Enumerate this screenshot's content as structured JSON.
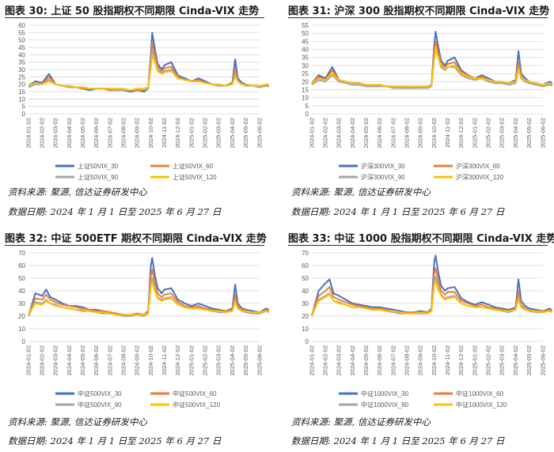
{
  "colors": {
    "s30": "#4472C4",
    "s60": "#ED7D31",
    "s90": "#A5A5A5",
    "s120": "#FFC000",
    "grid": "#d9d9d9",
    "text": "#595959"
  },
  "panels": [
    {
      "title": "图表 30:  上证 50 股指期权不同期限 Cinda-VIX 走势",
      "source": "资料来源:  聚源,  信达证券研发中心",
      "date": "数据日期:  2024 年 1 月 1 日至 2025 年 6 月 27 日"
    },
    {
      "title": "图表 31:  沪深 300 股指期权不同期限 Cinda-VIX 走势",
      "source": "资料来源:  聚源,  信达证券研发中心",
      "date": "数据日期:  2024 年 1 月 1 日至 2025 年 6 月 27 日"
    },
    {
      "title": "图表 32:  中证 500ETF 期权不同期限 Cinda-VIX 走势",
      "source": "资料来源:  聚源,  信达证券研发中心",
      "date": "数据日期:  2024 年 1 月 1 日至 2025 年 6 月 27 日"
    },
    {
      "title": "图表 33:  中证 1000 股指期权不同期限 Cinda-VIX 走势",
      "source": "资料来源:  聚源,  信达证券研发中心",
      "date": "数据日期:  2024 年 1 月 1 日至 2025 年 6 月 27 日"
    }
  ],
  "chart_data": [
    {
      "type": "line",
      "title": "上证 50 股指期权不同期限 Cinda-VIX 走势",
      "ylim": [
        0,
        60
      ],
      "yticks": [
        0,
        5,
        10,
        15,
        20,
        25,
        30,
        35,
        40,
        45,
        50,
        55,
        60
      ],
      "xticks": [
        "2024-01-02",
        "2024-02-02",
        "2024-03-02",
        "2024-04-02",
        "2024-05-02",
        "2024-06-02",
        "2024-07-02",
        "2024-08-02",
        "2024-09-02",
        "2024-10-02",
        "2024-11-02",
        "2024-12-02",
        "2025-01-02",
        "2025-02-02",
        "2025-03-02",
        "2025-04-02",
        "2025-05-02",
        "2025-06-02"
      ],
      "x": [
        0,
        0.5,
        1,
        1.5,
        2,
        2.5,
        3,
        3.5,
        4,
        4.5,
        5,
        5.5,
        6,
        6.5,
        7,
        7.5,
        8,
        8.5,
        8.8,
        9.0,
        9.1,
        9.3,
        9.5,
        9.8,
        10,
        10.5,
        11,
        11.5,
        12,
        12.5,
        13,
        13.5,
        14,
        14.5,
        15,
        15.2,
        15.4,
        15.7,
        16,
        16.5,
        17,
        17.5,
        17.9
      ],
      "series": [
        {
          "name": "上证50VIX_30",
          "values": [
            19,
            22,
            21,
            27,
            20,
            19,
            18,
            18,
            17,
            16,
            17,
            17,
            16,
            16,
            16,
            15,
            16,
            15,
            17,
            40,
            55,
            44,
            34,
            30,
            33,
            35,
            26,
            24,
            22,
            24,
            22,
            20,
            19,
            19,
            21,
            37,
            24,
            21,
            20,
            19,
            18,
            20,
            19
          ]
        },
        {
          "name": "上证50VIX_60",
          "values": [
            19,
            21,
            20,
            25,
            20,
            19,
            18,
            18,
            17,
            17,
            17,
            17,
            16,
            16,
            16,
            16,
            16,
            16,
            17,
            36,
            48,
            40,
            32,
            29,
            31,
            32,
            25,
            23,
            22,
            23,
            21,
            20,
            19,
            19,
            20,
            31,
            22,
            20,
            20,
            19,
            18,
            19,
            19
          ]
        },
        {
          "name": "上证50VIX_90",
          "values": [
            18,
            20,
            20,
            23,
            20,
            19,
            18,
            18,
            18,
            17,
            17,
            17,
            17,
            16,
            16,
            16,
            17,
            16,
            17,
            33,
            43,
            37,
            30,
            28,
            29,
            30,
            24,
            23,
            22,
            22,
            21,
            20,
            19,
            19,
            20,
            27,
            22,
            20,
            19,
            19,
            18,
            19,
            18
          ]
        },
        {
          "name": "上证50VIX_120",
          "values": [
            19,
            21,
            20,
            22,
            20,
            19,
            19,
            18,
            18,
            17,
            17,
            17,
            17,
            17,
            17,
            16,
            17,
            17,
            18,
            31,
            40,
            35,
            29,
            27,
            28,
            29,
            24,
            23,
            22,
            22,
            21,
            20,
            20,
            19,
            20,
            25,
            22,
            20,
            20,
            19,
            19,
            20,
            19
          ]
        }
      ],
      "legend": "bottom"
    },
    {
      "type": "line",
      "title": "沪深 300 股指期权不同期限 Cinda-VIX 走势",
      "ylim": [
        0,
        55
      ],
      "yticks": [
        0,
        5,
        10,
        15,
        20,
        25,
        30,
        35,
        40,
        45,
        50,
        55
      ],
      "xticks": [
        "2024-01-02",
        "2024-02-02",
        "2024-03-02",
        "2024-04-02",
        "2024-05-02",
        "2024-06-02",
        "2024-07-02",
        "2024-08-02",
        "2024-09-02",
        "2024-10-02",
        "2024-11-02",
        "2024-12-02",
        "2025-01-02",
        "2025-02-02",
        "2025-03-02",
        "2025-04-02",
        "2025-05-02",
        "2025-06-02"
      ],
      "x": [
        0,
        0.5,
        1,
        1.5,
        2,
        2.5,
        3,
        3.5,
        4,
        4.5,
        5,
        5.5,
        6,
        6.5,
        7,
        7.5,
        8,
        8.5,
        8.8,
        9.0,
        9.1,
        9.3,
        9.5,
        9.8,
        10,
        10.5,
        11,
        11.5,
        12,
        12.5,
        13,
        13.5,
        14,
        14.5,
        15,
        15.2,
        15.4,
        15.7,
        16,
        16.5,
        17,
        17.5,
        17.9
      ],
      "series": [
        {
          "name": "沪深300VIX_30",
          "values": [
            19,
            24,
            22,
            29,
            21,
            20,
            19,
            19,
            18,
            17,
            18,
            17,
            17,
            16,
            16,
            16,
            17,
            16,
            18,
            42,
            51,
            42,
            33,
            30,
            33,
            35,
            27,
            24,
            22,
            24,
            22,
            20,
            19,
            19,
            21,
            39,
            25,
            22,
            20,
            19,
            18,
            20,
            18
          ]
        },
        {
          "name": "沪深300VIX_60",
          "values": [
            19,
            23,
            21,
            27,
            21,
            20,
            19,
            19,
            18,
            17,
            18,
            17,
            17,
            17,
            17,
            16,
            17,
            17,
            18,
            38,
            45,
            38,
            31,
            29,
            31,
            32,
            26,
            24,
            22,
            23,
            21,
            20,
            19,
            19,
            20,
            32,
            23,
            21,
            20,
            19,
            18,
            19,
            18
          ]
        },
        {
          "name": "沪深300VIX_90",
          "values": [
            18,
            21,
            20,
            24,
            20,
            19,
            18,
            18,
            17,
            17,
            17,
            17,
            16,
            16,
            16,
            16,
            16,
            16,
            17,
            34,
            40,
            35,
            29,
            27,
            29,
            29,
            24,
            22,
            21,
            22,
            20,
            19,
            19,
            18,
            19,
            28,
            22,
            20,
            19,
            18,
            17,
            18,
            17
          ]
        },
        {
          "name": "沪深300VIX_120",
          "values": [
            19,
            22,
            21,
            25,
            21,
            20,
            19,
            19,
            18,
            18,
            18,
            17,
            17,
            17,
            17,
            17,
            17,
            17,
            18,
            33,
            40,
            35,
            30,
            28,
            29,
            30,
            25,
            23,
            22,
            22,
            21,
            20,
            20,
            19,
            20,
            28,
            22,
            21,
            20,
            19,
            18,
            19,
            18
          ]
        }
      ],
      "legend": "bottom"
    },
    {
      "type": "line",
      "title": "中证 500ETF 期权不同期限 Cinda-VIX 走势",
      "ylim": [
        0,
        70
      ],
      "yticks": [
        0,
        10,
        20,
        30,
        40,
        50,
        60,
        70
      ],
      "xticks": [
        "2024-01-02",
        "2024-02-02",
        "2024-03-02",
        "2024-04-02",
        "2024-05-02",
        "2024-06-02",
        "2024-07-02",
        "2024-08-02",
        "2024-09-02",
        "2024-10-02",
        "2024-11-02",
        "2024-12-02",
        "2025-01-02",
        "2025-02-02",
        "2025-03-02",
        "2025-04-02",
        "2025-05-02",
        "2025-06-02"
      ],
      "x": [
        0,
        0.5,
        1,
        1.3,
        1.6,
        2,
        2.5,
        3,
        3.5,
        4,
        4.5,
        5,
        5.5,
        6,
        6.5,
        7,
        7.5,
        8,
        8.5,
        8.8,
        9.0,
        9.1,
        9.3,
        9.5,
        9.8,
        10,
        10.5,
        11,
        11.5,
        12,
        12.5,
        13,
        13.5,
        14,
        14.5,
        15,
        15.2,
        15.4,
        15.7,
        16,
        16.5,
        17,
        17.5,
        17.9
      ],
      "series": [
        {
          "name": "中证500VIX_30",
          "values": [
            20,
            38,
            36,
            41,
            35,
            33,
            30,
            28,
            28,
            27,
            25,
            25,
            24,
            23,
            22,
            21,
            21,
            22,
            21,
            24,
            60,
            66,
            52,
            42,
            38,
            41,
            42,
            33,
            30,
            28,
            30,
            28,
            26,
            25,
            24,
            26,
            45,
            30,
            26,
            25,
            24,
            23,
            26,
            23
          ]
        },
        {
          "name": "中证500VIX_60",
          "values": [
            21,
            34,
            33,
            37,
            33,
            31,
            29,
            28,
            27,
            26,
            25,
            24,
            24,
            23,
            22,
            21,
            21,
            22,
            21,
            23,
            52,
            57,
            46,
            38,
            35,
            37,
            38,
            31,
            28,
            27,
            28,
            26,
            25,
            24,
            24,
            25,
            37,
            28,
            25,
            24,
            23,
            23,
            25,
            23
          ]
        },
        {
          "name": "中证500VIX_90",
          "values": [
            20,
            31,
            30,
            33,
            30,
            29,
            27,
            26,
            25,
            24,
            24,
            23,
            22,
            22,
            21,
            20,
            20,
            21,
            20,
            22,
            46,
            50,
            42,
            35,
            33,
            34,
            35,
            29,
            27,
            26,
            27,
            25,
            24,
            23,
            23,
            24,
            33,
            26,
            24,
            23,
            22,
            22,
            24,
            22
          ]
        },
        {
          "name": "中证500VIX_120",
          "values": [
            21,
            30,
            29,
            32,
            30,
            28,
            27,
            26,
            25,
            25,
            24,
            23,
            23,
            22,
            21,
            21,
            21,
            21,
            21,
            22,
            43,
            47,
            40,
            34,
            32,
            33,
            34,
            29,
            27,
            26,
            26,
            25,
            24,
            24,
            23,
            24,
            31,
            26,
            24,
            24,
            23,
            23,
            24,
            23
          ]
        }
      ],
      "legend": "bottom"
    },
    {
      "type": "line",
      "title": "中证 1000 股指期权不同期限 Cinda-VIX 走势",
      "ylim": [
        0,
        70
      ],
      "yticks": [
        0,
        10,
        20,
        30,
        40,
        50,
        60,
        70
      ],
      "xticks": [
        "2024-01-02",
        "2024-02-02",
        "2024-03-02",
        "2024-04-02",
        "2024-05-02",
        "2024-06-02",
        "2024-07-02",
        "2024-08-02",
        "2024-09-02",
        "2024-10-02",
        "2024-11-02",
        "2024-12-02",
        "2025-01-02",
        "2025-02-02",
        "2025-03-02",
        "2025-04-02",
        "2025-05-02",
        "2025-06-02"
      ],
      "x": [
        0,
        0.5,
        1,
        1.3,
        1.6,
        2,
        2.5,
        3,
        3.5,
        4,
        4.5,
        5,
        5.5,
        6,
        6.5,
        7,
        7.5,
        8,
        8.5,
        8.8,
        9.0,
        9.1,
        9.3,
        9.5,
        9.8,
        10,
        10.5,
        11,
        11.5,
        12,
        12.5,
        13,
        13.5,
        14,
        14.5,
        15,
        15.2,
        15.4,
        15.7,
        16,
        16.5,
        17,
        17.5,
        17.9
      ],
      "series": [
        {
          "name": "中证1000VIX_30",
          "values": [
            20,
            40,
            46,
            49,
            38,
            36,
            33,
            30,
            29,
            28,
            27,
            27,
            26,
            25,
            24,
            23,
            23,
            24,
            23,
            26,
            62,
            68,
            55,
            44,
            40,
            42,
            43,
            34,
            31,
            29,
            31,
            29,
            27,
            26,
            25,
            27,
            49,
            32,
            28,
            26,
            25,
            24,
            26,
            22
          ]
        },
        {
          "name": "中证1000VIX_60",
          "values": [
            21,
            36,
            40,
            43,
            35,
            33,
            31,
            29,
            28,
            27,
            26,
            26,
            25,
            24,
            23,
            23,
            23,
            23,
            23,
            25,
            53,
            58,
            48,
            40,
            37,
            39,
            39,
            32,
            30,
            28,
            29,
            27,
            26,
            25,
            24,
            26,
            40,
            29,
            26,
            25,
            24,
            24,
            25,
            23
          ]
        },
        {
          "name": "中证1000VIX_90",
          "values": [
            20,
            33,
            36,
            38,
            32,
            31,
            29,
            27,
            27,
            26,
            25,
            25,
            24,
            23,
            22,
            22,
            22,
            22,
            22,
            24,
            47,
            51,
            43,
            37,
            34,
            35,
            36,
            30,
            28,
            27,
            27,
            26,
            25,
            24,
            23,
            25,
            35,
            27,
            25,
            24,
            23,
            23,
            24,
            22
          ]
        },
        {
          "name": "中证1000VIX_120",
          "values": [
            21,
            32,
            35,
            37,
            32,
            30,
            29,
            27,
            27,
            26,
            25,
            25,
            24,
            24,
            23,
            22,
            22,
            23,
            22,
            24,
            44,
            48,
            41,
            36,
            33,
            34,
            35,
            30,
            28,
            27,
            27,
            26,
            25,
            24,
            24,
            25,
            33,
            27,
            25,
            24,
            24,
            23,
            24,
            22
          ]
        }
      ],
      "legend": "bottom"
    }
  ]
}
